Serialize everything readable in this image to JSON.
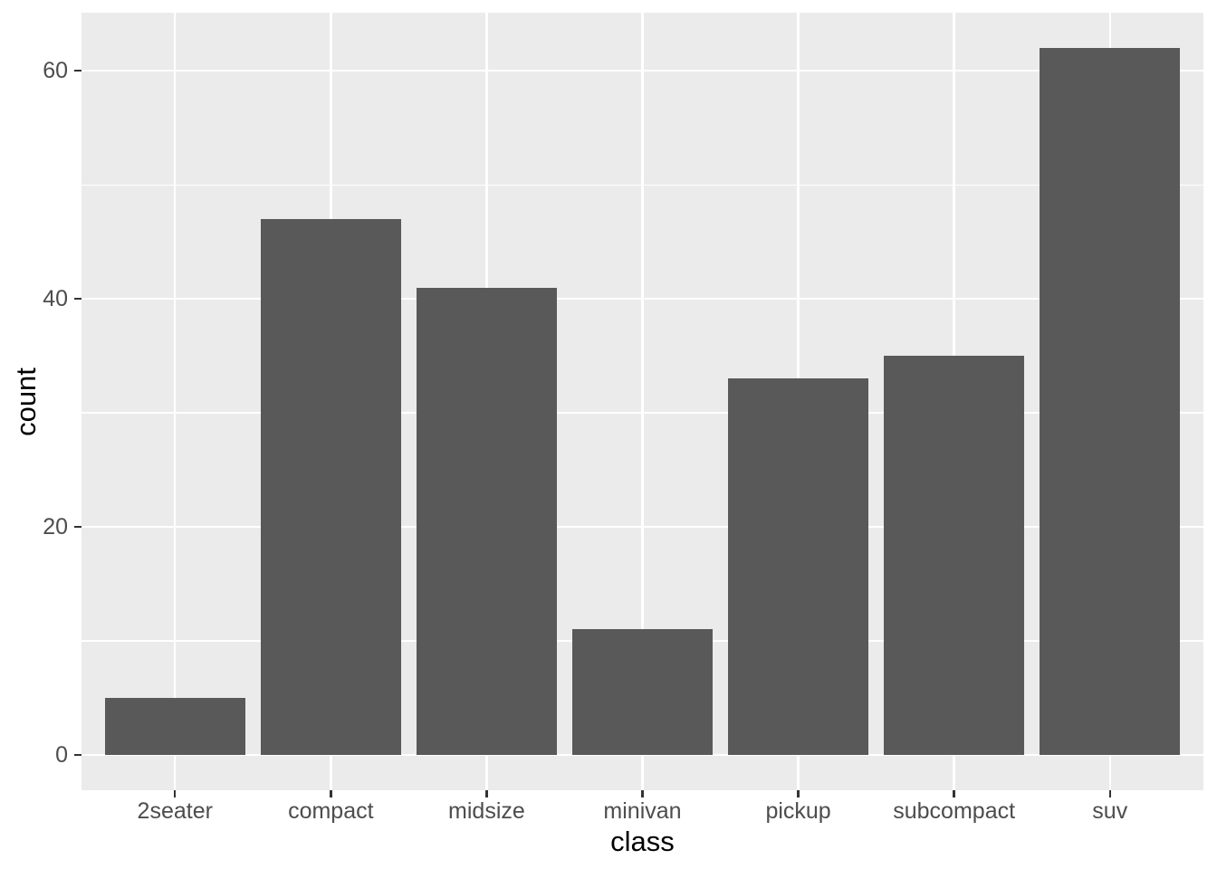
{
  "chart_data": {
    "type": "bar",
    "title": "",
    "categories": [
      "2seater",
      "compact",
      "midsize",
      "minivan",
      "pickup",
      "subcompact",
      "suv"
    ],
    "values": [
      5,
      47,
      41,
      11,
      33,
      35,
      62
    ],
    "xlabel": "class",
    "ylabel": "count",
    "yticks": [
      0,
      20,
      40,
      60
    ],
    "yticks_minor": [
      10,
      30,
      50
    ],
    "ylim": [
      -3.1,
      65.1
    ],
    "grid": "horizontal major+minor, vertical major at category centers, drawn under bars",
    "legend": "none",
    "colors": {
      "bar_fill": "#595959",
      "panel_background": "#EBEBEB",
      "gridline": "#FFFFFF",
      "tick_label": "#4D4D4D",
      "axis_title": "#000000",
      "tick_mark": "#333333",
      "figure_background": "#FFFFFF"
    }
  }
}
